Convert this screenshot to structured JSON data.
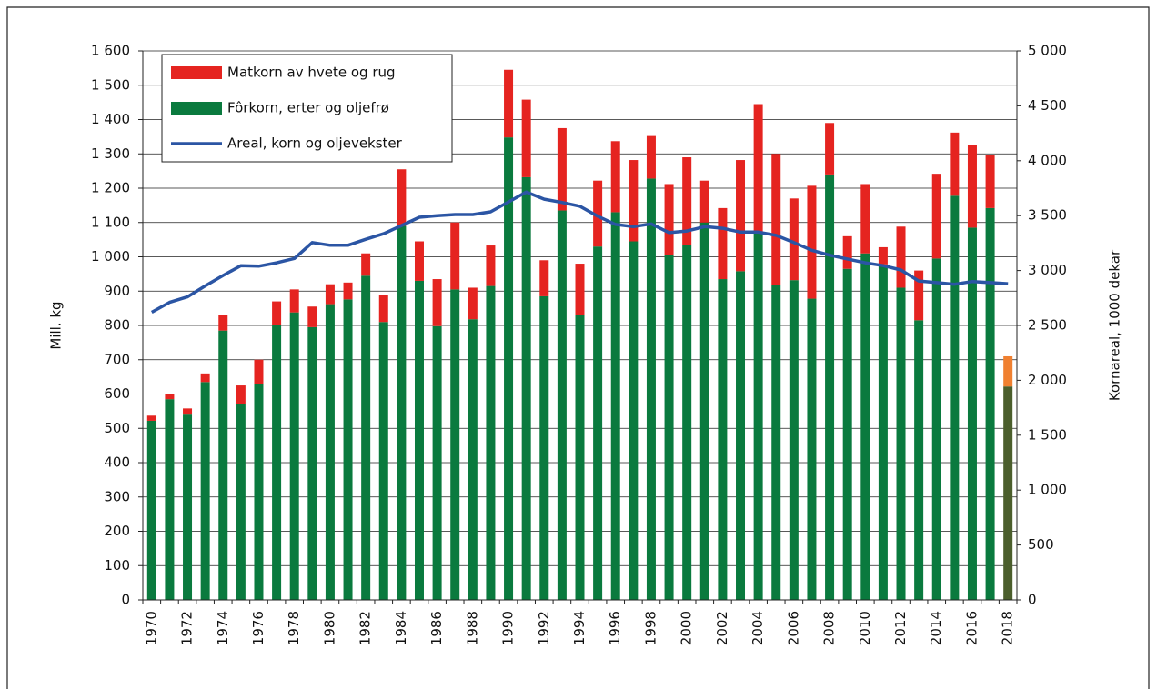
{
  "chart_data": {
    "type": "bar-line",
    "y_label": "Mill. kg",
    "y2_label": "Kornareal, 1000 dekar",
    "categories": [
      "1970",
      null,
      "1972",
      null,
      "1974",
      null,
      "1976",
      null,
      "1978",
      null,
      "1980",
      null,
      "1982",
      null,
      "1984",
      null,
      "1986",
      null,
      "1988",
      null,
      "1990",
      null,
      "1992",
      null,
      "1994",
      null,
      "1996",
      null,
      "1998",
      null,
      "2000",
      null,
      "2002",
      null,
      "2004",
      null,
      "2006",
      null,
      "2008",
      null,
      "2010",
      null,
      "2012",
      null,
      "2014",
      null,
      "2016",
      null,
      "2018"
    ],
    "series": [
      {
        "name": "Matkorn av hvete og rug",
        "kind": "bar",
        "color": "#e52420",
        "colors": [
          "#e52420",
          "#e52420",
          "#e52420",
          "#e52420",
          "#e52420",
          "#e52420",
          "#e52420",
          "#e52420",
          "#e52420",
          "#e52420",
          "#e52420",
          "#e52420",
          "#e52420",
          "#e52420",
          "#e52420",
          "#e52420",
          "#e52420",
          "#e52420",
          "#e52420",
          "#e52420",
          "#e52420",
          "#e52420",
          "#e52420",
          "#e52420",
          "#e52420",
          "#e52420",
          "#e52420",
          "#e52420",
          "#e52420",
          "#e52420",
          "#e52420",
          "#e52420",
          "#e52420",
          "#e52420",
          "#e52420",
          "#e52420",
          "#e52420",
          "#e52420",
          "#e52420",
          "#e52420",
          "#e52420",
          "#e52420",
          "#e52420",
          "#e52420",
          "#e52420",
          "#e52420",
          "#e52420",
          "#e52420",
          "#f08030"
        ],
        "values": [
          15,
          15,
          18,
          25,
          45,
          55,
          70,
          70,
          67,
          60,
          58,
          49,
          65,
          80,
          165,
          115,
          137,
          195,
          92,
          118,
          197,
          226,
          105,
          240,
          150,
          192,
          207,
          237,
          124,
          207,
          255,
          122,
          207,
          324,
          375,
          382,
          238,
          329,
          150,
          95,
          202,
          50,
          178,
          145,
          247,
          184,
          240,
          156,
          88
        ]
      },
      {
        "name": "Fôrkorn, erter og oljefrø",
        "kind": "bar",
        "color": "#0a7a3e",
        "colors": [
          "#0a7a3e",
          "#0a7a3e",
          "#0a7a3e",
          "#0a7a3e",
          "#0a7a3e",
          "#0a7a3e",
          "#0a7a3e",
          "#0a7a3e",
          "#0a7a3e",
          "#0a7a3e",
          "#0a7a3e",
          "#0a7a3e",
          "#0a7a3e",
          "#0a7a3e",
          "#0a7a3e",
          "#0a7a3e",
          "#0a7a3e",
          "#0a7a3e",
          "#0a7a3e",
          "#0a7a3e",
          "#0a7a3e",
          "#0a7a3e",
          "#0a7a3e",
          "#0a7a3e",
          "#0a7a3e",
          "#0a7a3e",
          "#0a7a3e",
          "#0a7a3e",
          "#0a7a3e",
          "#0a7a3e",
          "#0a7a3e",
          "#0a7a3e",
          "#0a7a3e",
          "#0a7a3e",
          "#0a7a3e",
          "#0a7a3e",
          "#0a7a3e",
          "#0a7a3e",
          "#0a7a3e",
          "#0a7a3e",
          "#0a7a3e",
          "#0a7a3e",
          "#0a7a3e",
          "#0a7a3e",
          "#0a7a3e",
          "#0a7a3e",
          "#0a7a3e",
          "#0a7a3e",
          "#4b5e2c"
        ],
        "values": [
          522,
          585,
          540,
          635,
          785,
          570,
          630,
          800,
          838,
          795,
          862,
          876,
          945,
          810,
          1090,
          930,
          798,
          905,
          818,
          915,
          1348,
          1232,
          885,
          1135,
          830,
          1030,
          1130,
          1045,
          1228,
          1005,
          1035,
          1100,
          935,
          958,
          1070,
          918,
          932,
          878,
          1240,
          965,
          1010,
          978,
          910,
          815,
          995,
          1178,
          1085,
          1142,
          622
        ]
      },
      {
        "name": "Areal, korn og oljevekster",
        "kind": "line",
        "axis": "y2",
        "color": "#2b55a4",
        "values": [
          2620,
          2710,
          2760,
          2860,
          2955,
          3045,
          3040,
          3070,
          3110,
          3255,
          3230,
          3230,
          3285,
          3335,
          3410,
          3485,
          3500,
          3510,
          3510,
          3535,
          3625,
          3715,
          3650,
          3620,
          3585,
          3495,
          3420,
          3400,
          3425,
          3345,
          3360,
          3400,
          3385,
          3350,
          3350,
          3320,
          3255,
          3185,
          3140,
          3105,
          3070,
          3045,
          3005,
          2905,
          2890,
          2875,
          2900,
          2890,
          2880
        ]
      }
    ],
    "ylim": [
      0,
      1600
    ],
    "yticks": [
      0,
      100,
      200,
      300,
      400,
      500,
      600,
      700,
      800,
      900,
      {
        "value": 1000,
        "label": "1 000"
      },
      {
        "value": 1100,
        "label": "1 100"
      },
      {
        "value": 1200,
        "label": "1 200"
      },
      {
        "value": 1300,
        "label": "1 300"
      },
      {
        "value": 1400,
        "label": "1 400"
      },
      {
        "value": 1500,
        "label": "1 500"
      },
      {
        "value": 1600,
        "label": "1 600"
      }
    ],
    "y2lim": [
      0,
      5000
    ],
    "y2ticks": [
      0,
      500,
      {
        "value": 1000,
        "label": "1 000"
      },
      {
        "value": 1500,
        "label": "1 500"
      },
      {
        "value": 2000,
        "label": "2 000"
      },
      {
        "value": 2500,
        "label": "2 500"
      },
      {
        "value": 3000,
        "label": "3 000"
      },
      {
        "value": 3500,
        "label": "3 500"
      },
      {
        "value": 4000,
        "label": "4 000"
      },
      {
        "value": 4500,
        "label": "4 500"
      },
      {
        "value": 5000,
        "label": "5 000"
      }
    ],
    "grid": true,
    "legend": "top-left"
  }
}
